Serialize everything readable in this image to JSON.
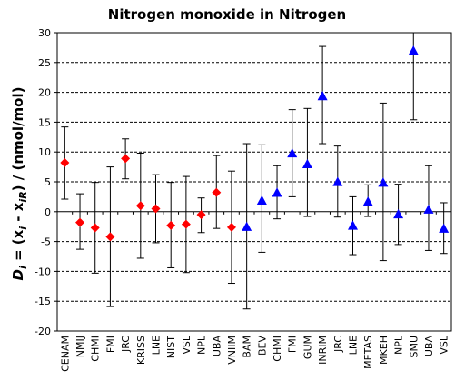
{
  "chart_data": {
    "type": "scatter",
    "title": "Nitrogen monoxide in Nitrogen",
    "ylabel_parts": [
      "D",
      "i",
      " = (x",
      "i",
      " - x",
      "iR",
      ") / (nmol/mol)"
    ],
    "xlabel": "",
    "ylim": [
      -20,
      30
    ],
    "yticks": [
      -20,
      -15,
      -10,
      -5,
      0,
      5,
      10,
      15,
      20,
      25,
      30
    ],
    "grid": "horizontal dashed",
    "categories": [
      "CENAM",
      "NMIJ",
      "CHMI",
      "FMI",
      "JRC",
      "KRISS",
      "LNE",
      "NIST",
      "VSL",
      "NPL",
      "UBA",
      "VNIIM",
      "BAM",
      "BEV",
      "CHMI",
      "FMI",
      "GUM",
      "INRIM",
      "JRC",
      "LNE",
      "METAS",
      "MKEH",
      "NPL",
      "SMU",
      "UBA",
      "VSL"
    ],
    "series": [
      {
        "marker": "diamond",
        "color": "#ff0000",
        "values": [
          8.2,
          -1.8,
          -2.7,
          -4.2,
          8.9,
          1.0,
          0.5,
          -2.3,
          -2.1,
          -0.5,
          3.2,
          -2.6
        ],
        "lower": [
          2.1,
          -6.3,
          -10.3,
          -15.9,
          5.5,
          -7.8,
          -5.2,
          -9.4,
          -10.2,
          -3.5,
          -2.8,
          -12.0
        ],
        "upper": [
          14.2,
          3.0,
          4.9,
          7.5,
          12.2,
          9.8,
          6.2,
          4.9,
          5.9,
          2.3,
          9.4,
          6.8
        ]
      },
      {
        "marker": "triangle",
        "color": "#0000ff",
        "values": [
          -2.5,
          1.9,
          3.2,
          9.8,
          8.0,
          19.4,
          5.0,
          -2.3,
          1.7,
          4.9,
          -0.4,
          27.0,
          0.4,
          -2.8
        ],
        "lower": [
          -16.3,
          -6.8,
          -1.2,
          2.5,
          -0.8,
          11.4,
          -0.9,
          -7.2,
          -0.8,
          -8.2,
          -5.5,
          15.4,
          -6.5,
          -7.0
        ],
        "upper": [
          11.4,
          11.2,
          7.7,
          17.1,
          17.3,
          27.7,
          11.0,
          2.5,
          4.5,
          18.2,
          4.6,
          30.0,
          7.7,
          1.5
        ]
      }
    ]
  }
}
